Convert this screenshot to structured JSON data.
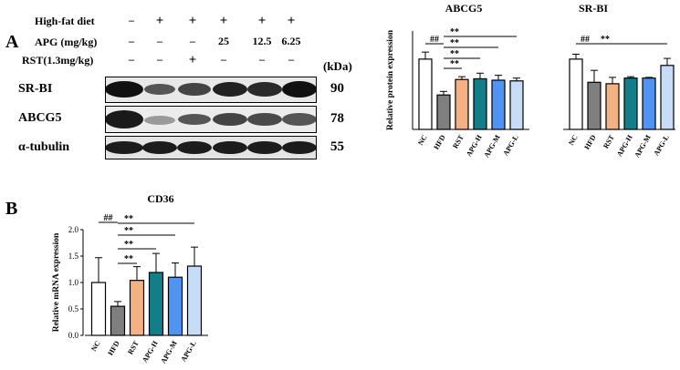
{
  "panels": {
    "a": "A",
    "b": "B"
  },
  "western_blot": {
    "conditions": [
      {
        "label": "High-fat diet",
        "values": [
          "–",
          "+",
          "+",
          "+",
          "+",
          "+"
        ]
      },
      {
        "label": "APG (mg/kg)",
        "values": [
          "–",
          "–",
          "–",
          "25",
          "12.5",
          "6.25"
        ]
      },
      {
        "label": "RST(1.3mg/kg)",
        "values": [
          "–",
          "–",
          "+",
          "–",
          "–",
          "–"
        ]
      }
    ],
    "kda_label": "(kDa)",
    "blots": [
      {
        "label": "SR-BI",
        "kda": "90"
      },
      {
        "label": "ABCG5",
        "kda": "78"
      },
      {
        "label": "α-tubulin",
        "kda": "55"
      }
    ]
  },
  "chart_data": [
    {
      "type": "bar",
      "title": "ABCG5",
      "ylabel": "Relative protein expression",
      "categories": [
        "NC",
        "HFD",
        "RST",
        "APG-H",
        "APG-M",
        "APG-L"
      ],
      "values": [
        1.0,
        0.49,
        0.71,
        0.72,
        0.7,
        0.69
      ],
      "errors": [
        0.1,
        0.05,
        0.04,
        0.08,
        0.07,
        0.04
      ],
      "colors": [
        "#ffffff",
        "#7f7f7f",
        "#f4b183",
        "#117e88",
        "#4f93f3",
        "#c6dcf7"
      ],
      "ylim": [
        0,
        1.4
      ],
      "annotations": [
        {
          "text": "##",
          "from": "NC",
          "to": "HFD"
        },
        {
          "text": "**",
          "from": "HFD",
          "to": "RST"
        },
        {
          "text": "**",
          "from": "HFD",
          "to": "APG-H"
        },
        {
          "text": "**",
          "from": "HFD",
          "to": "APG-M"
        },
        {
          "text": "**",
          "from": "HFD",
          "to": "APG-L"
        }
      ]
    },
    {
      "type": "bar",
      "title": "SR-BI",
      "ylabel": "",
      "categories": [
        "NC",
        "HFD",
        "RST",
        "APG-H",
        "APG-M",
        "APG-L"
      ],
      "values": [
        1.0,
        0.67,
        0.65,
        0.73,
        0.73,
        0.91
      ],
      "errors": [
        0.07,
        0.17,
        0.09,
        0.02,
        0.01,
        0.1
      ],
      "colors": [
        "#ffffff",
        "#7f7f7f",
        "#f4b183",
        "#117e88",
        "#4f93f3",
        "#c6dcf7"
      ],
      "ylim": [
        0,
        1.4
      ],
      "annotations": [
        {
          "text": "##",
          "from": "NC",
          "to": "HFD"
        },
        {
          "text": "**",
          "from": "HFD",
          "to": "APG-L"
        }
      ]
    },
    {
      "type": "bar",
      "title": "CD36",
      "ylabel": "Relative mRNA expression",
      "categories": [
        "NC",
        "HFD",
        "RST",
        "APG-H",
        "APG-M",
        "APG-L"
      ],
      "values": [
        1.0,
        0.55,
        1.04,
        1.19,
        1.1,
        1.31
      ],
      "errors": [
        0.47,
        0.09,
        0.26,
        0.36,
        0.27,
        0.36
      ],
      "colors": [
        "#ffffff",
        "#7f7f7f",
        "#f4b183",
        "#117e88",
        "#4f93f3",
        "#c6dcf7"
      ],
      "ylim": [
        0,
        2.0
      ],
      "yticks": [
        "0.0",
        "0.5",
        "1.0",
        "1.5",
        "2.0"
      ],
      "annotations": [
        {
          "text": "##",
          "from": "NC",
          "to": "HFD"
        },
        {
          "text": "**",
          "from": "HFD",
          "to": "RST"
        },
        {
          "text": "**",
          "from": "HFD",
          "to": "APG-H"
        },
        {
          "text": "**",
          "from": "HFD",
          "to": "APG-M"
        },
        {
          "text": "**",
          "from": "HFD",
          "to": "APG-L"
        }
      ]
    }
  ]
}
